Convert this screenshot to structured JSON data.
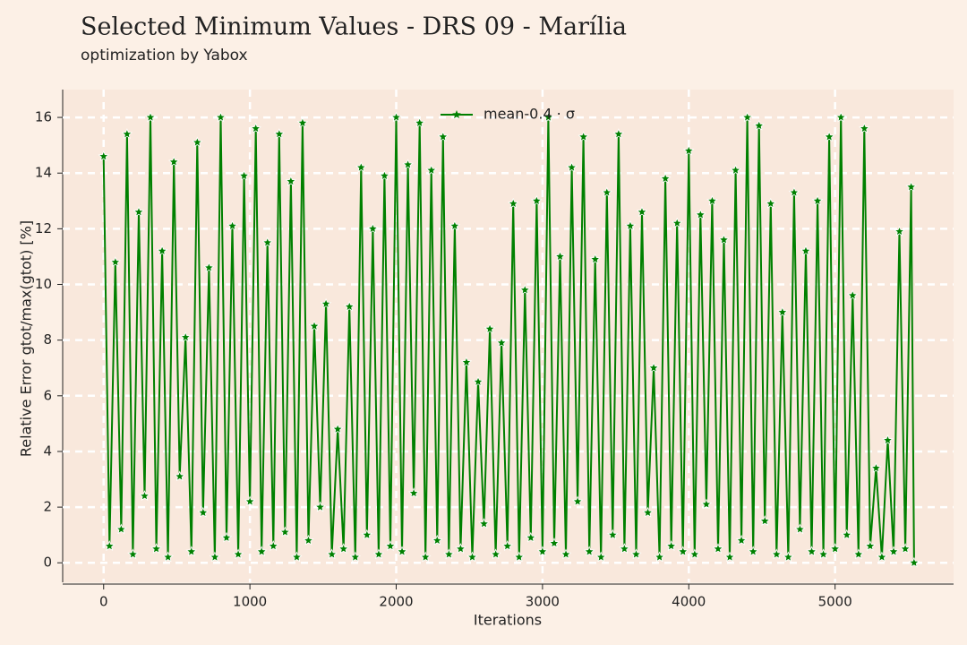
{
  "chart_data": {
    "type": "line",
    "title": "Selected Minimum Values - DRS 09 - Marília",
    "subtitle": "optimization by Yabox",
    "x_label": "Iterations",
    "y_label": "Relative Error gtot/max(gtot) [%]",
    "grid": true,
    "legend": "upper center",
    "xlim": [
      -280,
      5810
    ],
    "ylim": [
      -0.7,
      17
    ],
    "xticks": [
      0,
      1000,
      2000,
      3000,
      4000,
      5000
    ],
    "yticks": [
      0,
      2,
      4,
      6,
      8,
      10,
      12,
      14,
      16
    ],
    "x": [
      0,
      40,
      80,
      120,
      160,
      200,
      240,
      280,
      320,
      360,
      400,
      440,
      480,
      520,
      560,
      600,
      640,
      680,
      720,
      760,
      800,
      840,
      880,
      920,
      960,
      1000,
      1040,
      1080,
      1120,
      1160,
      1200,
      1240,
      1280,
      1320,
      1360,
      1400,
      1440,
      1480,
      1520,
      1560,
      1600,
      1640,
      1680,
      1720,
      1760,
      1800,
      1840,
      1880,
      1920,
      1960,
      2000,
      2040,
      2080,
      2120,
      2160,
      2200,
      2240,
      2280,
      2320,
      2360,
      2400,
      2440,
      2480,
      2520,
      2560,
      2600,
      2640,
      2680,
      2720,
      2760,
      2800,
      2840,
      2880,
      2920,
      2960,
      3000,
      3040,
      3080,
      3120,
      3160,
      3200,
      3240,
      3280,
      3320,
      3360,
      3400,
      3440,
      3480,
      3520,
      3560,
      3600,
      3640,
      3680,
      3720,
      3760,
      3800,
      3840,
      3880,
      3920,
      3960,
      4000,
      4040,
      4080,
      4120,
      4160,
      4200,
      4240,
      4280,
      4320,
      4360,
      4400,
      4440,
      4480,
      4520,
      4560,
      4600,
      4640,
      4680,
      4720,
      4760,
      4800,
      4840,
      4880,
      4920,
      4960,
      5000,
      5040,
      5080,
      5120,
      5160,
      5200,
      5240,
      5280,
      5320,
      5360,
      5400,
      5440,
      5480,
      5520,
      5540
    ],
    "series": [
      {
        "name": "mean-0.4 · σ",
        "color": "#008000",
        "values": [
          14.6,
          0.6,
          10.8,
          1.2,
          15.4,
          0.3,
          12.6,
          2.4,
          16.0,
          0.5,
          11.2,
          0.2,
          14.4,
          3.1,
          8.1,
          0.4,
          15.1,
          1.8,
          10.6,
          0.2,
          16.0,
          0.9,
          12.1,
          0.3,
          13.9,
          2.2,
          15.6,
          0.4,
          11.5,
          0.6,
          15.4,
          1.1,
          13.7,
          0.2,
          15.8,
          0.8,
          8.5,
          2.0,
          9.3,
          0.3,
          4.8,
          0.5,
          9.2,
          0.2,
          14.2,
          1.0,
          12.0,
          0.3,
          13.9,
          0.6,
          16.0,
          0.4,
          14.3,
          2.5,
          15.8,
          0.2,
          14.1,
          0.8,
          15.3,
          0.3,
          12.1,
          0.5,
          7.2,
          0.2,
          6.5,
          1.4,
          8.4,
          0.3,
          7.9,
          0.6,
          12.9,
          0.2,
          9.8,
          0.9,
          13.0,
          0.4,
          16.0,
          0.7,
          11.0,
          0.3,
          14.2,
          2.2,
          15.3,
          0.4,
          10.9,
          0.2,
          13.3,
          1.0,
          15.4,
          0.5,
          12.1,
          0.3,
          12.6,
          1.8,
          7.0,
          0.2,
          13.8,
          0.6,
          12.2,
          0.4,
          14.8,
          0.3,
          12.5,
          2.1,
          13.0,
          0.5,
          11.6,
          0.2,
          14.1,
          0.8,
          16.0,
          0.4,
          15.7,
          1.5,
          12.9,
          0.3,
          9.0,
          0.2,
          13.3,
          1.2,
          11.2,
          0.4,
          13.0,
          0.3,
          15.3,
          0.5,
          16.0,
          1.0,
          9.6,
          0.3,
          15.6,
          0.6,
          3.4,
          0.2,
          4.4,
          0.4,
          11.9,
          0.5,
          13.5,
          0.0
        ]
      }
    ]
  }
}
